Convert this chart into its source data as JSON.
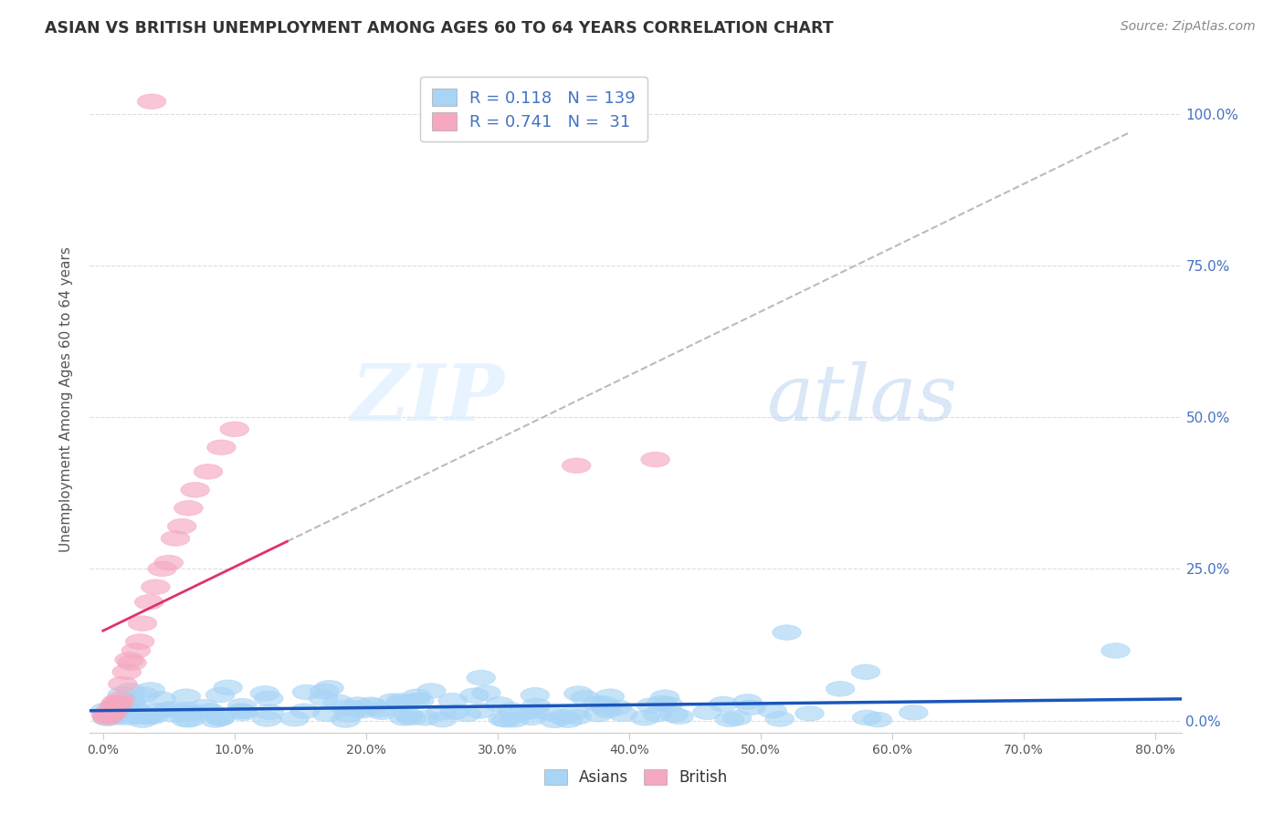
{
  "title": "ASIAN VS BRITISH UNEMPLOYMENT AMONG AGES 60 TO 64 YEARS CORRELATION CHART",
  "source": "Source: ZipAtlas.com",
  "ylabel": "Unemployment Among Ages 60 to 64 years",
  "ylim": [
    0.0,
    1.08
  ],
  "xlim": [
    -0.01,
    0.82
  ],
  "asian_R": 0.118,
  "asian_N": 139,
  "british_R": 0.741,
  "british_N": 31,
  "legend_labels": [
    "Asians",
    "British"
  ],
  "asian_color": "#A8D4F5",
  "british_color": "#F5A8C0",
  "asian_line_color": "#1A56BB",
  "british_line_color": "#E03070",
  "watermark_zip": "ZIP",
  "watermark_atlas": "atlas",
  "background_color": "#FFFFFF",
  "grid_color": "#DDDDDD",
  "title_color": "#333333",
  "right_tick_color": "#4472C4",
  "seed": 42
}
